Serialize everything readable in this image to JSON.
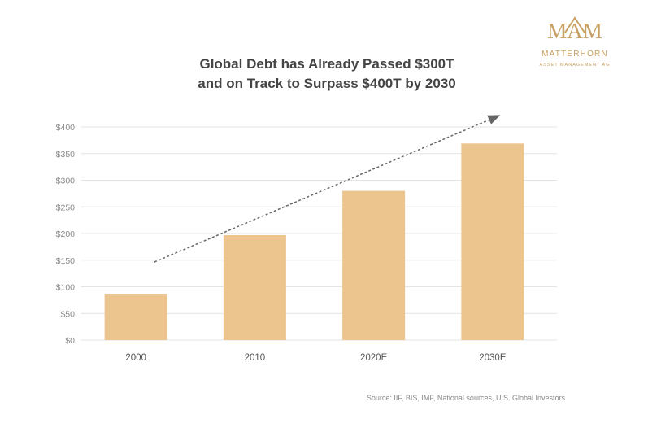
{
  "logo": {
    "mark_text": "MAM",
    "name": "MATTERHORN",
    "tagline": "ASSET MANAGEMENT AG",
    "color": "#c9a063"
  },
  "source_text": "Source: IIF, BIS, IMF, National sources, U.S. Global Investors",
  "colors": {
    "bar": "#ebc48e",
    "text": "#444444",
    "axis_text": "#888888",
    "grid": "#e4e4e4",
    "arrow": "#666666"
  },
  "chart_data": {
    "type": "bar",
    "title_lines": [
      "Global Debt has Already Passed $300T",
      "and on Track to Surpass $400T by 2030"
    ],
    "categories": [
      "2000",
      "2010",
      "2020E",
      "2030E"
    ],
    "values": [
      87,
      197,
      280,
      369
    ],
    "ylim": [
      0,
      400
    ],
    "yticks": [
      0,
      50,
      100,
      150,
      200,
      250,
      300,
      350,
      400
    ],
    "ytick_labels": [
      "$0",
      "$50",
      "$100",
      "$150",
      "$200",
      "$250",
      "$300",
      "$350",
      "$400"
    ],
    "xlabel": "",
    "ylabel": "",
    "grid": true,
    "legend": "none",
    "annotation": "upward trend arrow"
  }
}
